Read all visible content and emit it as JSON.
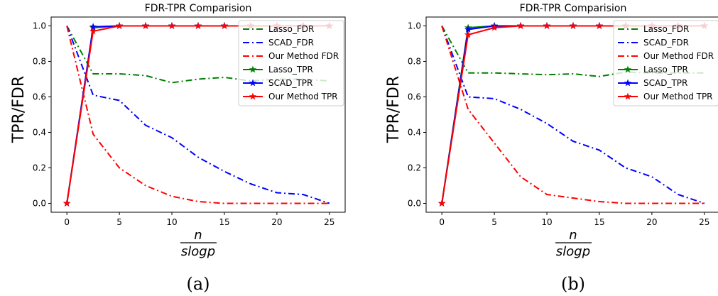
{
  "chart_data": [
    {
      "type": "line",
      "title": "FDR-TPR Comparision",
      "ylabel": "TPR/FDR",
      "xlabel_num": "n",
      "xlabel_den": "slogp",
      "panel_label": "(a)",
      "xlim": [
        -1.5,
        26.5
      ],
      "ylim": [
        -0.05,
        1.05
      ],
      "xticks": [
        0,
        5,
        10,
        15,
        20,
        25
      ],
      "yticks": [
        0.0,
        0.2,
        0.4,
        0.6,
        0.8,
        1.0
      ],
      "ytick_labels": [
        "0.0",
        "0.2",
        "0.4",
        "0.6",
        "0.8",
        "1.0"
      ],
      "grid": false,
      "legend_position": "top-right",
      "series": [
        {
          "name": "Lasso_FDR",
          "style": "dashdot",
          "color": "#008000",
          "marker": "none",
          "x": [
            0,
            2.5,
            5,
            7.5,
            10,
            12.5,
            15,
            17.5,
            20,
            22.5,
            25
          ],
          "y": [
            1.0,
            0.73,
            0.73,
            0.72,
            0.68,
            0.7,
            0.71,
            0.69,
            0.7,
            0.7,
            0.69
          ]
        },
        {
          "name": "SCAD_FDR",
          "style": "dashdot",
          "color": "#0000ff",
          "marker": "none",
          "x": [
            0,
            2.5,
            5,
            7.5,
            10,
            12.5,
            15,
            17.5,
            20,
            22.5,
            25
          ],
          "y": [
            1.0,
            0.61,
            0.58,
            0.44,
            0.37,
            0.26,
            0.18,
            0.11,
            0.06,
            0.05,
            0.0
          ]
        },
        {
          "name": "Our Method FDR",
          "style": "dashdot",
          "color": "#ff0000",
          "marker": "none",
          "x": [
            0,
            2.5,
            5,
            7.5,
            10,
            12.5,
            15,
            17.5,
            20,
            22.5,
            25
          ],
          "y": [
            1.0,
            0.39,
            0.2,
            0.1,
            0.04,
            0.01,
            0.0,
            0.0,
            0.0,
            0.0,
            0.0
          ]
        },
        {
          "name": "Lasso_TPR",
          "style": "solid",
          "color": "#008000",
          "marker": "star",
          "x": [
            0,
            2.5,
            5,
            7.5,
            10,
            12.5,
            15,
            17.5,
            20,
            22.5,
            25
          ],
          "y": [
            0.0,
            0.99,
            1.0,
            1.0,
            1.0,
            1.0,
            1.0,
            1.0,
            1.0,
            1.0,
            1.0
          ]
        },
        {
          "name": "SCAD_TPR",
          "style": "solid",
          "color": "#0000ff",
          "marker": "star",
          "x": [
            0,
            2.5,
            5,
            7.5,
            10,
            12.5,
            15,
            17.5,
            20,
            22.5,
            25
          ],
          "y": [
            0.0,
            0.995,
            1.0,
            1.0,
            1.0,
            1.0,
            1.0,
            1.0,
            1.0,
            1.0,
            1.0
          ]
        },
        {
          "name": "Our Method TPR",
          "style": "solid",
          "color": "#ff0000",
          "marker": "star",
          "x": [
            0,
            2.5,
            5,
            7.5,
            10,
            12.5,
            15,
            17.5,
            20,
            22.5,
            25
          ],
          "y": [
            0.0,
            0.97,
            1.0,
            1.0,
            1.0,
            1.0,
            1.0,
            1.0,
            1.0,
            1.0,
            1.0
          ]
        }
      ]
    },
    {
      "type": "line",
      "title": "FDR-TPR Comparision",
      "ylabel": "TPR/FDR",
      "xlabel_num": "n",
      "xlabel_den": "slogp",
      "panel_label": "(b)",
      "xlim": [
        -1.5,
        26.5
      ],
      "ylim": [
        -0.05,
        1.05
      ],
      "xticks": [
        0,
        5,
        10,
        15,
        20,
        25
      ],
      "yticks": [
        0.0,
        0.2,
        0.4,
        0.6,
        0.8,
        1.0
      ],
      "ytick_labels": [
        "0.0",
        "0.2",
        "0.4",
        "0.6",
        "0.8",
        "1.0"
      ],
      "grid": false,
      "legend_position": "top-right",
      "series": [
        {
          "name": "Lasso_FDR",
          "style": "dashdot",
          "color": "#008000",
          "marker": "none",
          "x": [
            0,
            2.5,
            5,
            7.5,
            10,
            12.5,
            15,
            17.5,
            20,
            22.5,
            25
          ],
          "y": [
            1.0,
            0.735,
            0.735,
            0.73,
            0.725,
            0.73,
            0.715,
            0.74,
            0.735,
            0.735,
            0.735
          ]
        },
        {
          "name": "SCAD_FDR",
          "style": "dashdot",
          "color": "#0000ff",
          "marker": "none",
          "x": [
            0,
            2.5,
            5,
            7.5,
            10,
            12.5,
            15,
            17.5,
            20,
            22.5,
            25
          ],
          "y": [
            1.0,
            0.6,
            0.59,
            0.53,
            0.45,
            0.35,
            0.3,
            0.2,
            0.15,
            0.05,
            0.0
          ]
        },
        {
          "name": "Our Method FDR",
          "style": "dashdot",
          "color": "#ff0000",
          "marker": "none",
          "x": [
            0,
            2.5,
            5,
            7.5,
            10,
            12.5,
            15,
            17.5,
            20,
            22.5,
            25
          ],
          "y": [
            1.0,
            0.53,
            0.34,
            0.15,
            0.05,
            0.03,
            0.01,
            0.0,
            0.0,
            0.0,
            0.0
          ]
        },
        {
          "name": "Lasso_TPR",
          "style": "solid",
          "color": "#008000",
          "marker": "star",
          "x": [
            0,
            2.5,
            5,
            7.5,
            10,
            12.5,
            15,
            17.5,
            20,
            22.5,
            25
          ],
          "y": [
            0.0,
            0.99,
            1.0,
            1.0,
            1.0,
            1.0,
            1.0,
            1.0,
            1.0,
            1.0,
            1.0
          ]
        },
        {
          "name": "SCAD_TPR",
          "style": "solid",
          "color": "#0000ff",
          "marker": "star",
          "x": [
            0,
            2.5,
            5,
            7.5,
            10,
            12.5,
            15,
            17.5,
            20,
            22.5,
            25
          ],
          "y": [
            0.0,
            0.98,
            1.0,
            1.0,
            1.0,
            1.0,
            1.0,
            1.0,
            1.0,
            1.0,
            1.0
          ]
        },
        {
          "name": "Our Method TPR",
          "style": "solid",
          "color": "#ff0000",
          "marker": "star",
          "x": [
            0,
            2.5,
            5,
            7.5,
            10,
            12.5,
            15,
            17.5,
            20,
            22.5,
            25
          ],
          "y": [
            0.0,
            0.95,
            0.99,
            1.0,
            1.0,
            1.0,
            1.0,
            1.0,
            1.0,
            1.0,
            1.0
          ]
        }
      ]
    }
  ]
}
